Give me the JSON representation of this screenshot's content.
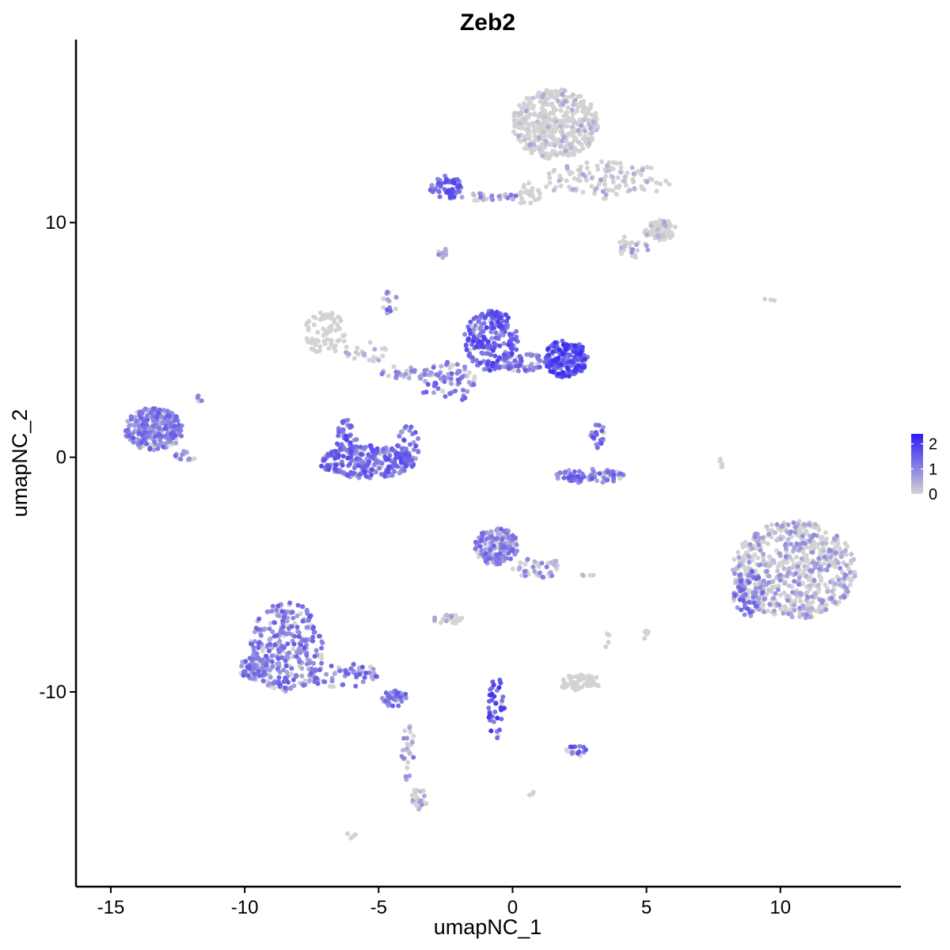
{
  "chart_data": {
    "type": "scatter",
    "title": "Zeb2",
    "xlabel": "umapNC_1",
    "ylabel": "umapNC_2",
    "xlim": [
      -16.3,
      14.5
    ],
    "ylim": [
      -18.3,
      17.8
    ],
    "x_ticks": [
      {
        "value": -15,
        "label": "-15"
      },
      {
        "value": -10,
        "label": "-10"
      },
      {
        "value": -5,
        "label": "-5"
      },
      {
        "value": 0,
        "label": "0"
      },
      {
        "value": 5,
        "label": "5"
      },
      {
        "value": 10,
        "label": "10"
      }
    ],
    "y_ticks": [
      {
        "value": -10,
        "label": "-10"
      },
      {
        "value": 0,
        "label": "0"
      },
      {
        "value": 10,
        "label": "10"
      }
    ],
    "color_scale": {
      "low": "#d3d3d3",
      "high": "#2b1cf5",
      "min": 0,
      "max": 2.4,
      "ticks": [
        {
          "value": 0,
          "label": "0"
        },
        {
          "value": 1,
          "label": "1"
        },
        {
          "value": 2,
          "label": "2"
        }
      ]
    },
    "grid": false,
    "legend_placement": "right",
    "clusters": [
      {
        "cx": 1.6,
        "cy": 14.2,
        "rx": 1.6,
        "ry": 1.5,
        "n": 420,
        "expr": 0.02
      },
      {
        "cx": 3.5,
        "cy": 11.8,
        "rx": 2.4,
        "ry": 0.8,
        "n": 120,
        "expr": 0.05
      },
      {
        "cx": 5.5,
        "cy": 9.7,
        "rx": 0.6,
        "ry": 0.45,
        "n": 80,
        "expr": 0.05
      },
      {
        "cx": 4.5,
        "cy": 9.0,
        "rx": 0.6,
        "ry": 0.5,
        "n": 25,
        "expr": 0.3
      },
      {
        "cx": 0.6,
        "cy": 11.2,
        "rx": 0.5,
        "ry": 0.5,
        "n": 25,
        "expr": 0.0
      },
      {
        "cx": -2.5,
        "cy": 11.5,
        "rx": 0.6,
        "ry": 0.5,
        "n": 60,
        "expr": 1.3
      },
      {
        "cx": -0.9,
        "cy": 11.1,
        "rx": 1.1,
        "ry": 0.2,
        "n": 25,
        "expr": 0.8
      },
      {
        "cx": -2.6,
        "cy": 8.7,
        "rx": 0.2,
        "ry": 0.2,
        "n": 8,
        "expr": 0.8
      },
      {
        "cx": -7.0,
        "cy": 5.3,
        "rx": 0.8,
        "ry": 0.9,
        "n": 70,
        "expr": 0.0
      },
      {
        "cx": -5.5,
        "cy": 4.5,
        "rx": 0.8,
        "ry": 0.5,
        "n": 25,
        "expr": 0.1
      },
      {
        "cx": -4.6,
        "cy": 6.6,
        "rx": 0.3,
        "ry": 0.6,
        "n": 15,
        "expr": 1.0
      },
      {
        "cx": -0.8,
        "cy": 5.0,
        "rx": 1.0,
        "ry": 1.3,
        "n": 220,
        "expr": 1.4
      },
      {
        "cx": 2.0,
        "cy": 4.2,
        "rx": 0.8,
        "ry": 0.8,
        "n": 180,
        "expr": 1.6
      },
      {
        "cx": 0.5,
        "cy": 4.0,
        "rx": 0.9,
        "ry": 0.4,
        "n": 50,
        "expr": 1.0
      },
      {
        "cx": -2.4,
        "cy": 3.2,
        "rx": 1.1,
        "ry": 0.9,
        "n": 70,
        "expr": 1.0
      },
      {
        "cx": -4.0,
        "cy": 3.6,
        "rx": 1.0,
        "ry": 0.3,
        "n": 30,
        "expr": 0.6
      },
      {
        "cx": -5.4,
        "cy": -0.2,
        "rx": 1.8,
        "ry": 0.7,
        "n": 240,
        "expr": 1.2
      },
      {
        "cx": -6.2,
        "cy": 0.7,
        "rx": 0.4,
        "ry": 0.9,
        "n": 40,
        "expr": 1.3
      },
      {
        "cx": -3.9,
        "cy": 0.5,
        "rx": 0.4,
        "ry": 0.9,
        "n": 40,
        "expr": 1.2
      },
      {
        "cx": -13.4,
        "cy": 1.2,
        "rx": 1.1,
        "ry": 0.9,
        "n": 260,
        "expr": 1.0
      },
      {
        "cx": -12.2,
        "cy": 0.1,
        "rx": 0.4,
        "ry": 0.25,
        "n": 15,
        "expr": 0.8
      },
      {
        "cx": -11.7,
        "cy": 2.5,
        "rx": 0.2,
        "ry": 0.25,
        "n": 6,
        "expr": 0.7
      },
      {
        "cx": 2.9,
        "cy": -0.8,
        "rx": 1.3,
        "ry": 0.3,
        "n": 80,
        "expr": 1.1
      },
      {
        "cx": 3.2,
        "cy": 0.9,
        "rx": 0.3,
        "ry": 0.5,
        "n": 25,
        "expr": 1.2
      },
      {
        "cx": 10.5,
        "cy": -4.8,
        "rx": 2.3,
        "ry": 2.1,
        "n": 620,
        "expr": 0.4
      },
      {
        "cx": 8.8,
        "cy": -5.8,
        "rx": 0.6,
        "ry": 1.0,
        "n": 80,
        "expr": 1.0
      },
      {
        "cx": 7.8,
        "cy": -0.2,
        "rx": 0.1,
        "ry": 0.3,
        "n": 6,
        "expr": 0.0
      },
      {
        "cx": -0.6,
        "cy": -3.8,
        "rx": 0.8,
        "ry": 0.8,
        "n": 170,
        "expr": 0.9
      },
      {
        "cx": 0.9,
        "cy": -4.7,
        "rx": 0.9,
        "ry": 0.5,
        "n": 40,
        "expr": 0.6
      },
      {
        "cx": -8.4,
        "cy": -8.1,
        "rx": 1.4,
        "ry": 1.9,
        "n": 300,
        "expr": 1.0
      },
      {
        "cx": -9.6,
        "cy": -9.0,
        "rx": 0.6,
        "ry": 0.5,
        "n": 60,
        "expr": 1.0
      },
      {
        "cx": -6.3,
        "cy": -9.3,
        "rx": 1.5,
        "ry": 0.5,
        "n": 60,
        "expr": 1.0
      },
      {
        "cx": -4.4,
        "cy": -10.3,
        "rx": 0.5,
        "ry": 0.35,
        "n": 40,
        "expr": 1.2
      },
      {
        "cx": -3.9,
        "cy": -12.5,
        "rx": 0.25,
        "ry": 1.3,
        "n": 25,
        "expr": 0.6
      },
      {
        "cx": -3.5,
        "cy": -14.6,
        "rx": 0.3,
        "ry": 0.5,
        "n": 25,
        "expr": 0.4
      },
      {
        "cx": 2.5,
        "cy": -9.6,
        "rx": 0.8,
        "ry": 0.35,
        "n": 60,
        "expr": 0.0
      },
      {
        "cx": -0.6,
        "cy": -10.7,
        "rx": 0.3,
        "ry": 1.4,
        "n": 40,
        "expr": 1.6
      },
      {
        "cx": -2.4,
        "cy": -6.9,
        "rx": 0.6,
        "ry": 0.2,
        "n": 25,
        "expr": 0.2
      },
      {
        "cx": 2.4,
        "cy": -12.5,
        "rx": 0.4,
        "ry": 0.25,
        "n": 15,
        "expr": 1.4
      },
      {
        "cx": 5.0,
        "cy": -7.4,
        "rx": 0.15,
        "ry": 0.4,
        "n": 6,
        "expr": 0.0
      },
      {
        "cx": 3.5,
        "cy": -7.8,
        "rx": 0.2,
        "ry": 0.3,
        "n": 5,
        "expr": 0.0
      },
      {
        "cx": -6.0,
        "cy": -16.1,
        "rx": 0.2,
        "ry": 0.15,
        "n": 4,
        "expr": 0.0
      },
      {
        "cx": 0.6,
        "cy": -14.3,
        "rx": 0.2,
        "ry": 0.1,
        "n": 3,
        "expr": 0.0
      },
      {
        "cx": 9.6,
        "cy": 6.7,
        "rx": 0.3,
        "ry": 0.1,
        "n": 3,
        "expr": 0.0
      },
      {
        "cx": 2.8,
        "cy": -5.0,
        "rx": 0.3,
        "ry": 0.1,
        "n": 4,
        "expr": 0.4
      }
    ]
  }
}
